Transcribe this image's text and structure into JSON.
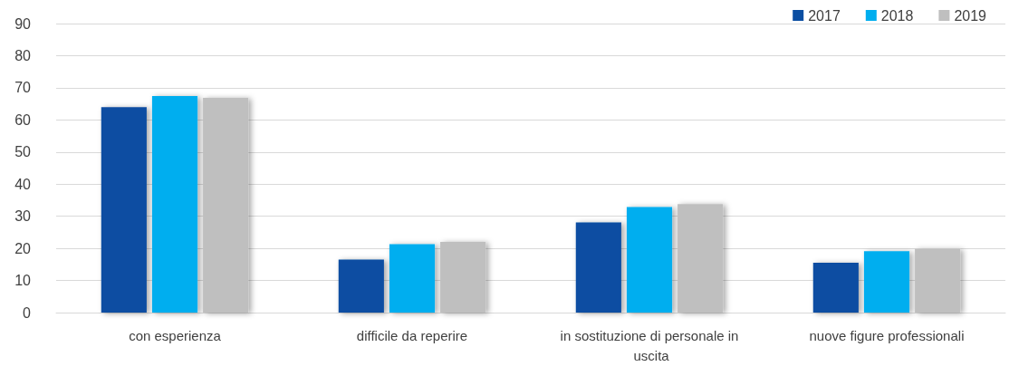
{
  "chart_data": {
    "type": "bar",
    "categories": [
      "con esperienza",
      "difficile da reperire",
      "in sostituzione di personale in uscita",
      "nuove figure professionali"
    ],
    "series": [
      {
        "name": "2017",
        "color": "#0b4ea2",
        "values": [
          64,
          16.5,
          28.1,
          15.5
        ]
      },
      {
        "name": "2018",
        "color": "#00aeef",
        "values": [
          67.4,
          21.3,
          32.9,
          19.1
        ]
      },
      {
        "name": "2019",
        "color": "#bfbfbf",
        "values": [
          66.9,
          22,
          33.8,
          19.8
        ]
      }
    ],
    "ylim": [
      0,
      90
    ],
    "yticks": [
      0,
      10,
      20,
      30,
      40,
      50,
      60,
      70,
      80,
      90
    ],
    "grid": "y",
    "legend": "top right"
  }
}
